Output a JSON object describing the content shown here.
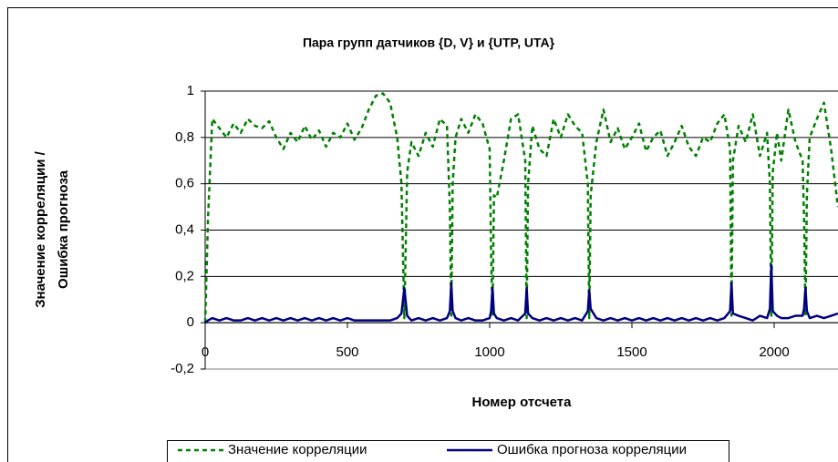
{
  "chart_data": {
    "type": "line",
    "title": "Пара групп датчиков {D, V} и {UTP, UTA}",
    "x_label": "Номер отсчета",
    "y_label": [
      "Значение корреляции /",
      "Ошибка прогноза"
    ],
    "x": [
      0,
      10,
      25,
      50,
      75,
      100,
      125,
      150,
      175,
      200,
      225,
      250,
      275,
      300,
      325,
      350,
      375,
      400,
      425,
      450,
      475,
      500,
      525,
      550,
      575,
      600,
      625,
      650,
      675,
      690,
      700,
      710,
      725,
      750,
      775,
      800,
      825,
      850,
      860,
      865,
      870,
      880,
      900,
      925,
      950,
      975,
      1000,
      1005,
      1010,
      1015,
      1025,
      1050,
      1075,
      1100,
      1125,
      1130,
      1135,
      1150,
      1175,
      1200,
      1225,
      1250,
      1275,
      1300,
      1325,
      1345,
      1350,
      1355,
      1375,
      1400,
      1425,
      1450,
      1475,
      1500,
      1525,
      1550,
      1575,
      1600,
      1625,
      1650,
      1675,
      1700,
      1725,
      1750,
      1775,
      1800,
      1825,
      1845,
      1850,
      1855,
      1875,
      1900,
      1925,
      1950,
      1975,
      1985,
      1990,
      1995,
      2010,
      2025,
      2050,
      2075,
      2100,
      2105,
      2110,
      2115,
      2125,
      2150,
      2175,
      2200,
      2224
    ],
    "series": [
      {
        "name": "Значение корреляции",
        "color": "#008000",
        "style": "dashed",
        "values": [
          0,
          0.45,
          0.88,
          0.84,
          0.8,
          0.86,
          0.82,
          0.88,
          0.85,
          0.84,
          0.87,
          0.8,
          0.75,
          0.82,
          0.78,
          0.85,
          0.79,
          0.83,
          0.76,
          0.82,
          0.8,
          0.86,
          0.79,
          0.84,
          0.92,
          0.98,
          0.99,
          0.95,
          0.8,
          0.6,
          0.02,
          0.65,
          0.78,
          0.72,
          0.82,
          0.76,
          0.88,
          0.85,
          0.5,
          0.03,
          0.6,
          0.8,
          0.88,
          0.82,
          0.9,
          0.86,
          0.75,
          0.3,
          0.03,
          0.55,
          0.54,
          0.7,
          0.88,
          0.9,
          0.7,
          0.02,
          0.6,
          0.85,
          0.75,
          0.72,
          0.88,
          0.8,
          0.9,
          0.85,
          0.82,
          0.6,
          0.02,
          0.55,
          0.78,
          0.92,
          0.78,
          0.84,
          0.75,
          0.8,
          0.86,
          0.74,
          0.8,
          0.83,
          0.72,
          0.78,
          0.85,
          0.76,
          0.72,
          0.8,
          0.78,
          0.86,
          0.9,
          0.75,
          0.03,
          0.7,
          0.85,
          0.78,
          0.9,
          0.72,
          0.82,
          0.6,
          0.03,
          0.65,
          0.82,
          0.7,
          0.92,
          0.78,
          0.7,
          0.45,
          0.03,
          0.55,
          0.8,
          0.88,
          0.95,
          0.75,
          0.5
        ]
      },
      {
        "name": "Ошибка прогноза корреляции",
        "color": "#000080",
        "style": "solid",
        "values": [
          0,
          0.01,
          0.02,
          0.01,
          0.02,
          0.01,
          0.01,
          0.02,
          0.01,
          0.02,
          0.01,
          0.02,
          0.01,
          0.02,
          0.01,
          0.02,
          0.01,
          0.02,
          0.01,
          0.02,
          0.01,
          0.02,
          0.01,
          0.01,
          0.01,
          0.01,
          0.01,
          0.01,
          0.02,
          0.04,
          0.15,
          0.03,
          0.01,
          0.02,
          0.01,
          0.02,
          0.01,
          0.02,
          0.05,
          0.17,
          0.05,
          0.02,
          0.01,
          0.02,
          0.01,
          0.01,
          0.02,
          0.05,
          0.15,
          0.04,
          0.02,
          0.01,
          0.02,
          0.01,
          0.04,
          0.15,
          0.04,
          0.02,
          0.01,
          0.02,
          0.01,
          0.02,
          0.01,
          0.02,
          0.01,
          0.05,
          0.14,
          0.06,
          0.02,
          0.01,
          0.02,
          0.01,
          0.02,
          0.01,
          0.02,
          0.01,
          0.02,
          0.01,
          0.02,
          0.01,
          0.02,
          0.01,
          0.02,
          0.01,
          0.02,
          0.01,
          0.02,
          0.05,
          0.17,
          0.04,
          0.03,
          0.02,
          0.01,
          0.03,
          0.02,
          0.06,
          0.25,
          0.05,
          0.03,
          0.02,
          0.02,
          0.03,
          0.03,
          0.06,
          0.15,
          0.05,
          0.02,
          0.03,
          0.02,
          0.03,
          0.04
        ]
      }
    ],
    "xlim": [
      0,
      2224
    ],
    "xticks": [
      0,
      500,
      1000,
      1500,
      2000
    ],
    "ylim": [
      -0.2,
      1
    ],
    "yticks": [
      {
        "value": -0.2,
        "label": "-0,2"
      },
      0,
      {
        "value": 0.2,
        "label": "0,2"
      },
      {
        "value": 0.4,
        "label": "0,4"
      },
      {
        "value": 0.6,
        "label": "0,6"
      },
      {
        "value": 0.8,
        "label": "0,8"
      },
      1
    ],
    "grid": true
  }
}
